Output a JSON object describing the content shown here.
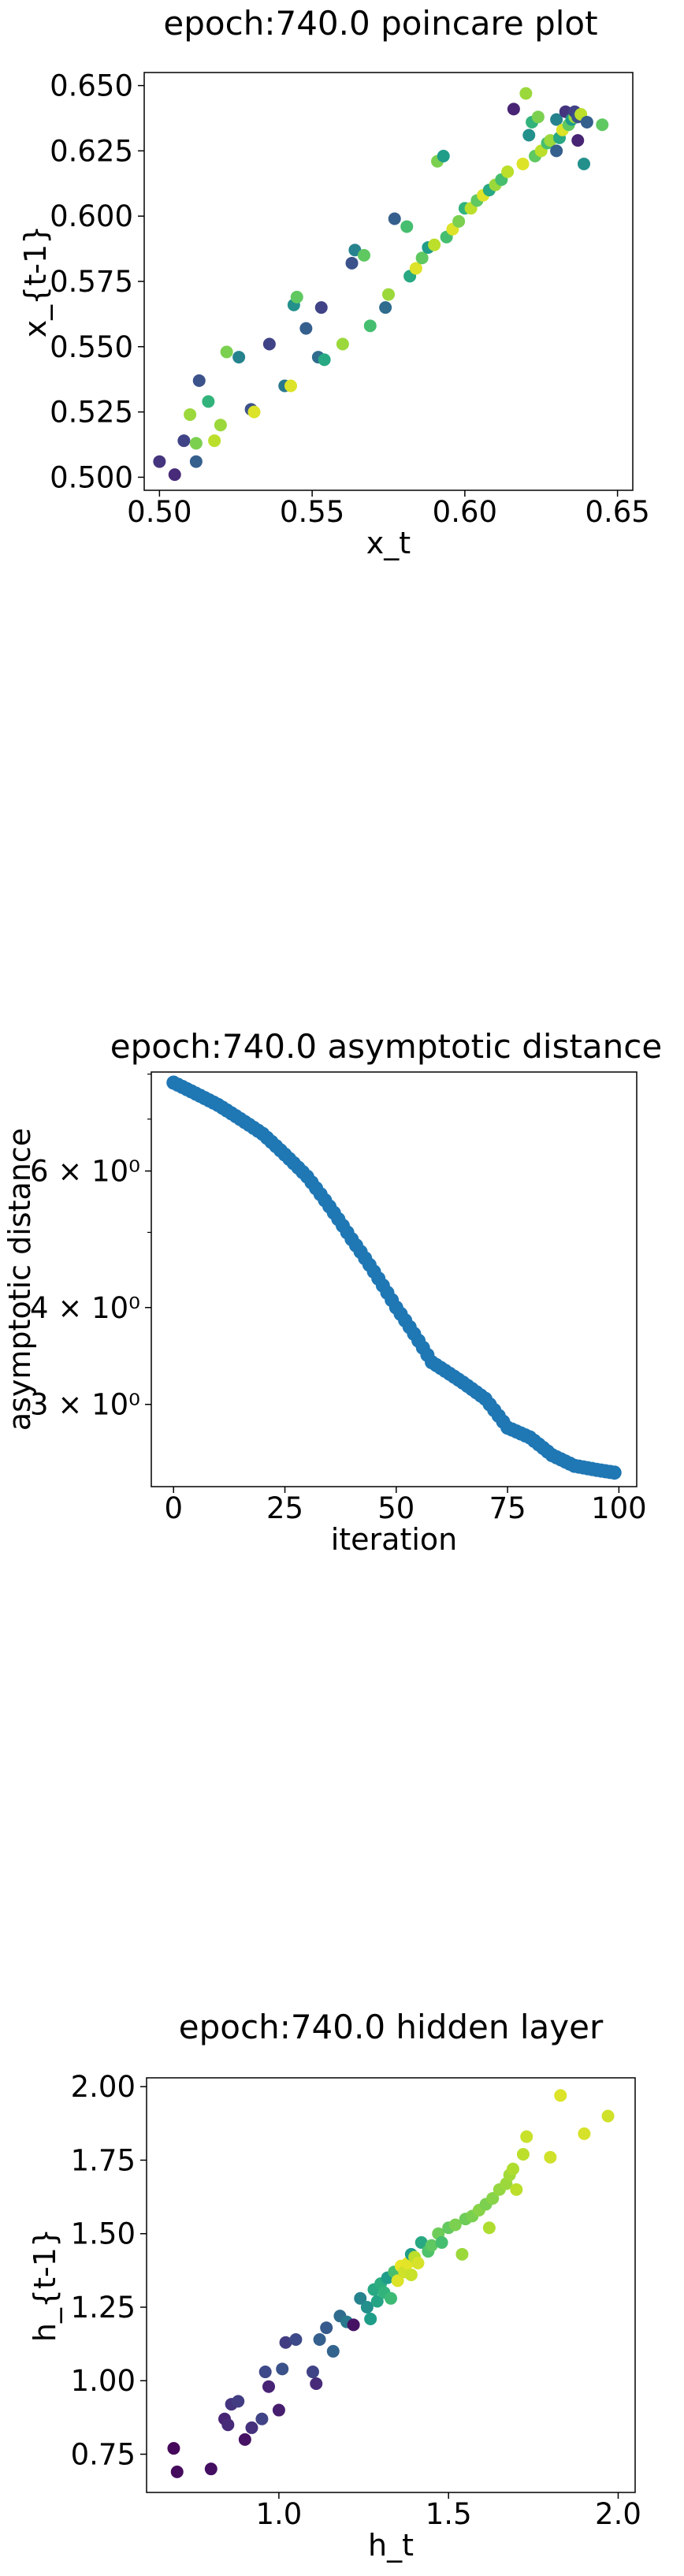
{
  "chart_data": [
    {
      "type": "scatter",
      "title": "epoch:740.0 poincare plot",
      "xlabel": "x_t",
      "ylabel": "x_{t-1}",
      "xlim": [
        0.495,
        0.655
      ],
      "ylim": [
        0.495,
        0.655
      ],
      "xticks": [
        "0.50",
        "0.55",
        "0.60",
        "0.65"
      ],
      "xtick_values": [
        0.5,
        0.55,
        0.6,
        0.65
      ],
      "yticks": [
        "0.500",
        "0.525",
        "0.550",
        "0.575",
        "0.600",
        "0.625",
        "0.650"
      ],
      "ytick_values": [
        0.5,
        0.525,
        0.55,
        0.575,
        0.6,
        0.625,
        0.65
      ],
      "colormap": "viridis",
      "points": [
        [
          0.5,
          0.506,
          0.15
        ],
        [
          0.505,
          0.501,
          0.12
        ],
        [
          0.508,
          0.514,
          0.2
        ],
        [
          0.51,
          0.524,
          0.85
        ],
        [
          0.512,
          0.513,
          0.8
        ],
        [
          0.512,
          0.506,
          0.3
        ],
        [
          0.513,
          0.537,
          0.25
        ],
        [
          0.516,
          0.529,
          0.65
        ],
        [
          0.518,
          0.514,
          0.9
        ],
        [
          0.52,
          0.52,
          0.85
        ],
        [
          0.522,
          0.548,
          0.8
        ],
        [
          0.526,
          0.546,
          0.45
        ],
        [
          0.53,
          0.526,
          0.25
        ],
        [
          0.531,
          0.525,
          0.95
        ],
        [
          0.536,
          0.551,
          0.2
        ],
        [
          0.541,
          0.535,
          0.4
        ],
        [
          0.543,
          0.535,
          0.95
        ],
        [
          0.544,
          0.566,
          0.5
        ],
        [
          0.545,
          0.569,
          0.75
        ],
        [
          0.548,
          0.557,
          0.3
        ],
        [
          0.552,
          0.546,
          0.35
        ],
        [
          0.553,
          0.565,
          0.2
        ],
        [
          0.554,
          0.545,
          0.6
        ],
        [
          0.56,
          0.551,
          0.85
        ],
        [
          0.563,
          0.582,
          0.25
        ],
        [
          0.564,
          0.587,
          0.45
        ],
        [
          0.567,
          0.585,
          0.75
        ],
        [
          0.569,
          0.558,
          0.7
        ],
        [
          0.574,
          0.565,
          0.35
        ],
        [
          0.575,
          0.57,
          0.85
        ],
        [
          0.577,
          0.599,
          0.3
        ],
        [
          0.581,
          0.596,
          0.7
        ],
        [
          0.582,
          0.577,
          0.6
        ],
        [
          0.584,
          0.58,
          0.95
        ],
        [
          0.586,
          0.584,
          0.75
        ],
        [
          0.588,
          0.588,
          0.55
        ],
        [
          0.59,
          0.589,
          0.9
        ],
        [
          0.591,
          0.621,
          0.8
        ],
        [
          0.593,
          0.623,
          0.55
        ],
        [
          0.594,
          0.592,
          0.7
        ],
        [
          0.596,
          0.595,
          0.95
        ],
        [
          0.598,
          0.598,
          0.8
        ],
        [
          0.6,
          0.603,
          0.65
        ],
        [
          0.602,
          0.603,
          0.9
        ],
        [
          0.604,
          0.606,
          0.75
        ],
        [
          0.606,
          0.608,
          0.95
        ],
        [
          0.608,
          0.61,
          0.6
        ],
        [
          0.61,
          0.612,
          0.85
        ],
        [
          0.612,
          0.614,
          0.7
        ],
        [
          0.614,
          0.617,
          0.9
        ],
        [
          0.616,
          0.641,
          0.1
        ],
        [
          0.619,
          0.62,
          0.95
        ],
        [
          0.62,
          0.647,
          0.85
        ],
        [
          0.621,
          0.631,
          0.5
        ],
        [
          0.622,
          0.636,
          0.65
        ],
        [
          0.623,
          0.623,
          0.75
        ],
        [
          0.624,
          0.638,
          0.8
        ],
        [
          0.625,
          0.625,
          0.9
        ],
        [
          0.627,
          0.628,
          0.7
        ],
        [
          0.628,
          0.629,
          0.85
        ],
        [
          0.63,
          0.637,
          0.45
        ],
        [
          0.63,
          0.625,
          0.3
        ],
        [
          0.631,
          0.63,
          0.6
        ],
        [
          0.632,
          0.633,
          0.95
        ],
        [
          0.633,
          0.64,
          0.15
        ],
        [
          0.634,
          0.635,
          0.75
        ],
        [
          0.635,
          0.637,
          0.55
        ],
        [
          0.636,
          0.638,
          0.85
        ],
        [
          0.636,
          0.64,
          0.2
        ],
        [
          0.637,
          0.638,
          0.25
        ],
        [
          0.637,
          0.629,
          0.1
        ],
        [
          0.638,
          0.639,
          0.9
        ],
        [
          0.639,
          0.62,
          0.5
        ],
        [
          0.64,
          0.636,
          0.3
        ],
        [
          0.645,
          0.635,
          0.75
        ]
      ]
    },
    {
      "type": "scatter",
      "title": "epoch:740.0 asymptotic distance",
      "xlabel": "iteration",
      "ylabel": "asymptotic distance",
      "yscale": "log",
      "xlim": [
        -5,
        104
      ],
      "ylim": [
        2.35,
        8.05
      ],
      "xticks": [
        "0",
        "25",
        "50",
        "75",
        "100"
      ],
      "xtick_values": [
        0,
        25,
        50,
        75,
        100
      ],
      "yticks": [
        "3 × 10⁰",
        "4 × 10⁰",
        "6 × 10⁰"
      ],
      "ytick_values": [
        3,
        4,
        6
      ],
      "color": "#1f77b4",
      "x": [
        0,
        100
      ],
      "anchors": [
        [
          0,
          7.8
        ],
        [
          10,
          7.3
        ],
        [
          20,
          6.7
        ],
        [
          30,
          5.9
        ],
        [
          40,
          4.9
        ],
        [
          50,
          4.0
        ],
        [
          58,
          3.4
        ],
        [
          65,
          3.2
        ],
        [
          70,
          3.05
        ],
        [
          75,
          2.8
        ],
        [
          80,
          2.72
        ],
        [
          85,
          2.58
        ],
        [
          90,
          2.5
        ],
        [
          95,
          2.47
        ],
        [
          99,
          2.45
        ]
      ]
    },
    {
      "type": "scatter",
      "title": "epoch:740.0 hidden layer",
      "xlabel": "h_t",
      "ylabel": "h_{t-1}",
      "xlim": [
        0.61,
        2.05
      ],
      "ylim": [
        0.62,
        2.03
      ],
      "xticks": [
        "1.0",
        "1.5",
        "2.0"
      ],
      "xtick_values": [
        1.0,
        1.5,
        2.0
      ],
      "yticks": [
        "0.75",
        "1.00",
        "1.25",
        "1.50",
        "1.75",
        "2.00"
      ],
      "ytick_values": [
        0.75,
        1.0,
        1.25,
        1.5,
        1.75,
        2.0
      ],
      "colormap": "viridis",
      "points": [
        [
          0.69,
          0.77,
          0.02
        ],
        [
          0.7,
          0.69,
          0.03
        ],
        [
          0.8,
          0.7,
          0.04
        ],
        [
          0.84,
          0.87,
          0.1
        ],
        [
          0.85,
          0.85,
          0.12
        ],
        [
          0.86,
          0.92,
          0.15
        ],
        [
          0.88,
          0.93,
          0.18
        ],
        [
          0.9,
          0.8,
          0.05
        ],
        [
          0.92,
          0.84,
          0.14
        ],
        [
          0.95,
          0.87,
          0.2
        ],
        [
          0.96,
          1.03,
          0.22
        ],
        [
          0.97,
          0.98,
          0.1
        ],
        [
          1.0,
          0.9,
          0.08
        ],
        [
          1.01,
          1.04,
          0.25
        ],
        [
          1.02,
          1.13,
          0.18
        ],
        [
          1.05,
          1.14,
          0.22
        ],
        [
          1.1,
          1.03,
          0.2
        ],
        [
          1.11,
          0.99,
          0.12
        ],
        [
          1.12,
          1.14,
          0.3
        ],
        [
          1.14,
          1.18,
          0.28
        ],
        [
          1.16,
          1.1,
          0.32
        ],
        [
          1.18,
          1.22,
          0.35
        ],
        [
          1.2,
          1.2,
          0.4
        ],
        [
          1.22,
          1.19,
          0.05
        ],
        [
          1.24,
          1.28,
          0.45
        ],
        [
          1.26,
          1.25,
          0.5
        ],
        [
          1.27,
          1.21,
          0.55
        ],
        [
          1.28,
          1.31,
          0.6
        ],
        [
          1.29,
          1.27,
          0.58
        ],
        [
          1.3,
          1.33,
          0.62
        ],
        [
          1.31,
          1.3,
          0.65
        ],
        [
          1.32,
          1.35,
          0.55
        ],
        [
          1.33,
          1.28,
          0.68
        ],
        [
          1.34,
          1.37,
          0.7
        ],
        [
          1.35,
          1.34,
          0.95
        ],
        [
          1.36,
          1.39,
          0.97
        ],
        [
          1.37,
          1.37,
          0.93
        ],
        [
          1.38,
          1.4,
          0.96
        ],
        [
          1.39,
          1.36,
          0.92
        ],
        [
          1.39,
          1.43,
          0.55
        ],
        [
          1.4,
          1.42,
          0.9
        ],
        [
          1.41,
          1.4,
          0.94
        ],
        [
          1.42,
          1.47,
          0.6
        ],
        [
          1.44,
          1.44,
          0.72
        ],
        [
          1.45,
          1.46,
          0.75
        ],
        [
          1.47,
          1.5,
          0.78
        ],
        [
          1.48,
          1.47,
          0.7
        ],
        [
          1.5,
          1.52,
          0.76
        ],
        [
          1.52,
          1.53,
          0.8
        ],
        [
          1.54,
          1.43,
          0.85
        ],
        [
          1.55,
          1.55,
          0.78
        ],
        [
          1.57,
          1.56,
          0.8
        ],
        [
          1.59,
          1.58,
          0.82
        ],
        [
          1.61,
          1.6,
          0.8
        ],
        [
          1.62,
          1.52,
          0.88
        ],
        [
          1.63,
          1.62,
          0.82
        ],
        [
          1.65,
          1.65,
          0.84
        ],
        [
          1.67,
          1.67,
          0.85
        ],
        [
          1.68,
          1.7,
          0.86
        ],
        [
          1.69,
          1.72,
          0.88
        ],
        [
          1.7,
          1.65,
          0.9
        ],
        [
          1.72,
          1.77,
          0.9
        ],
        [
          1.73,
          1.83,
          0.92
        ],
        [
          1.8,
          1.76,
          0.93
        ],
        [
          1.83,
          1.97,
          0.95
        ],
        [
          1.9,
          1.84,
          0.94
        ],
        [
          1.97,
          1.9,
          0.93
        ]
      ]
    }
  ]
}
